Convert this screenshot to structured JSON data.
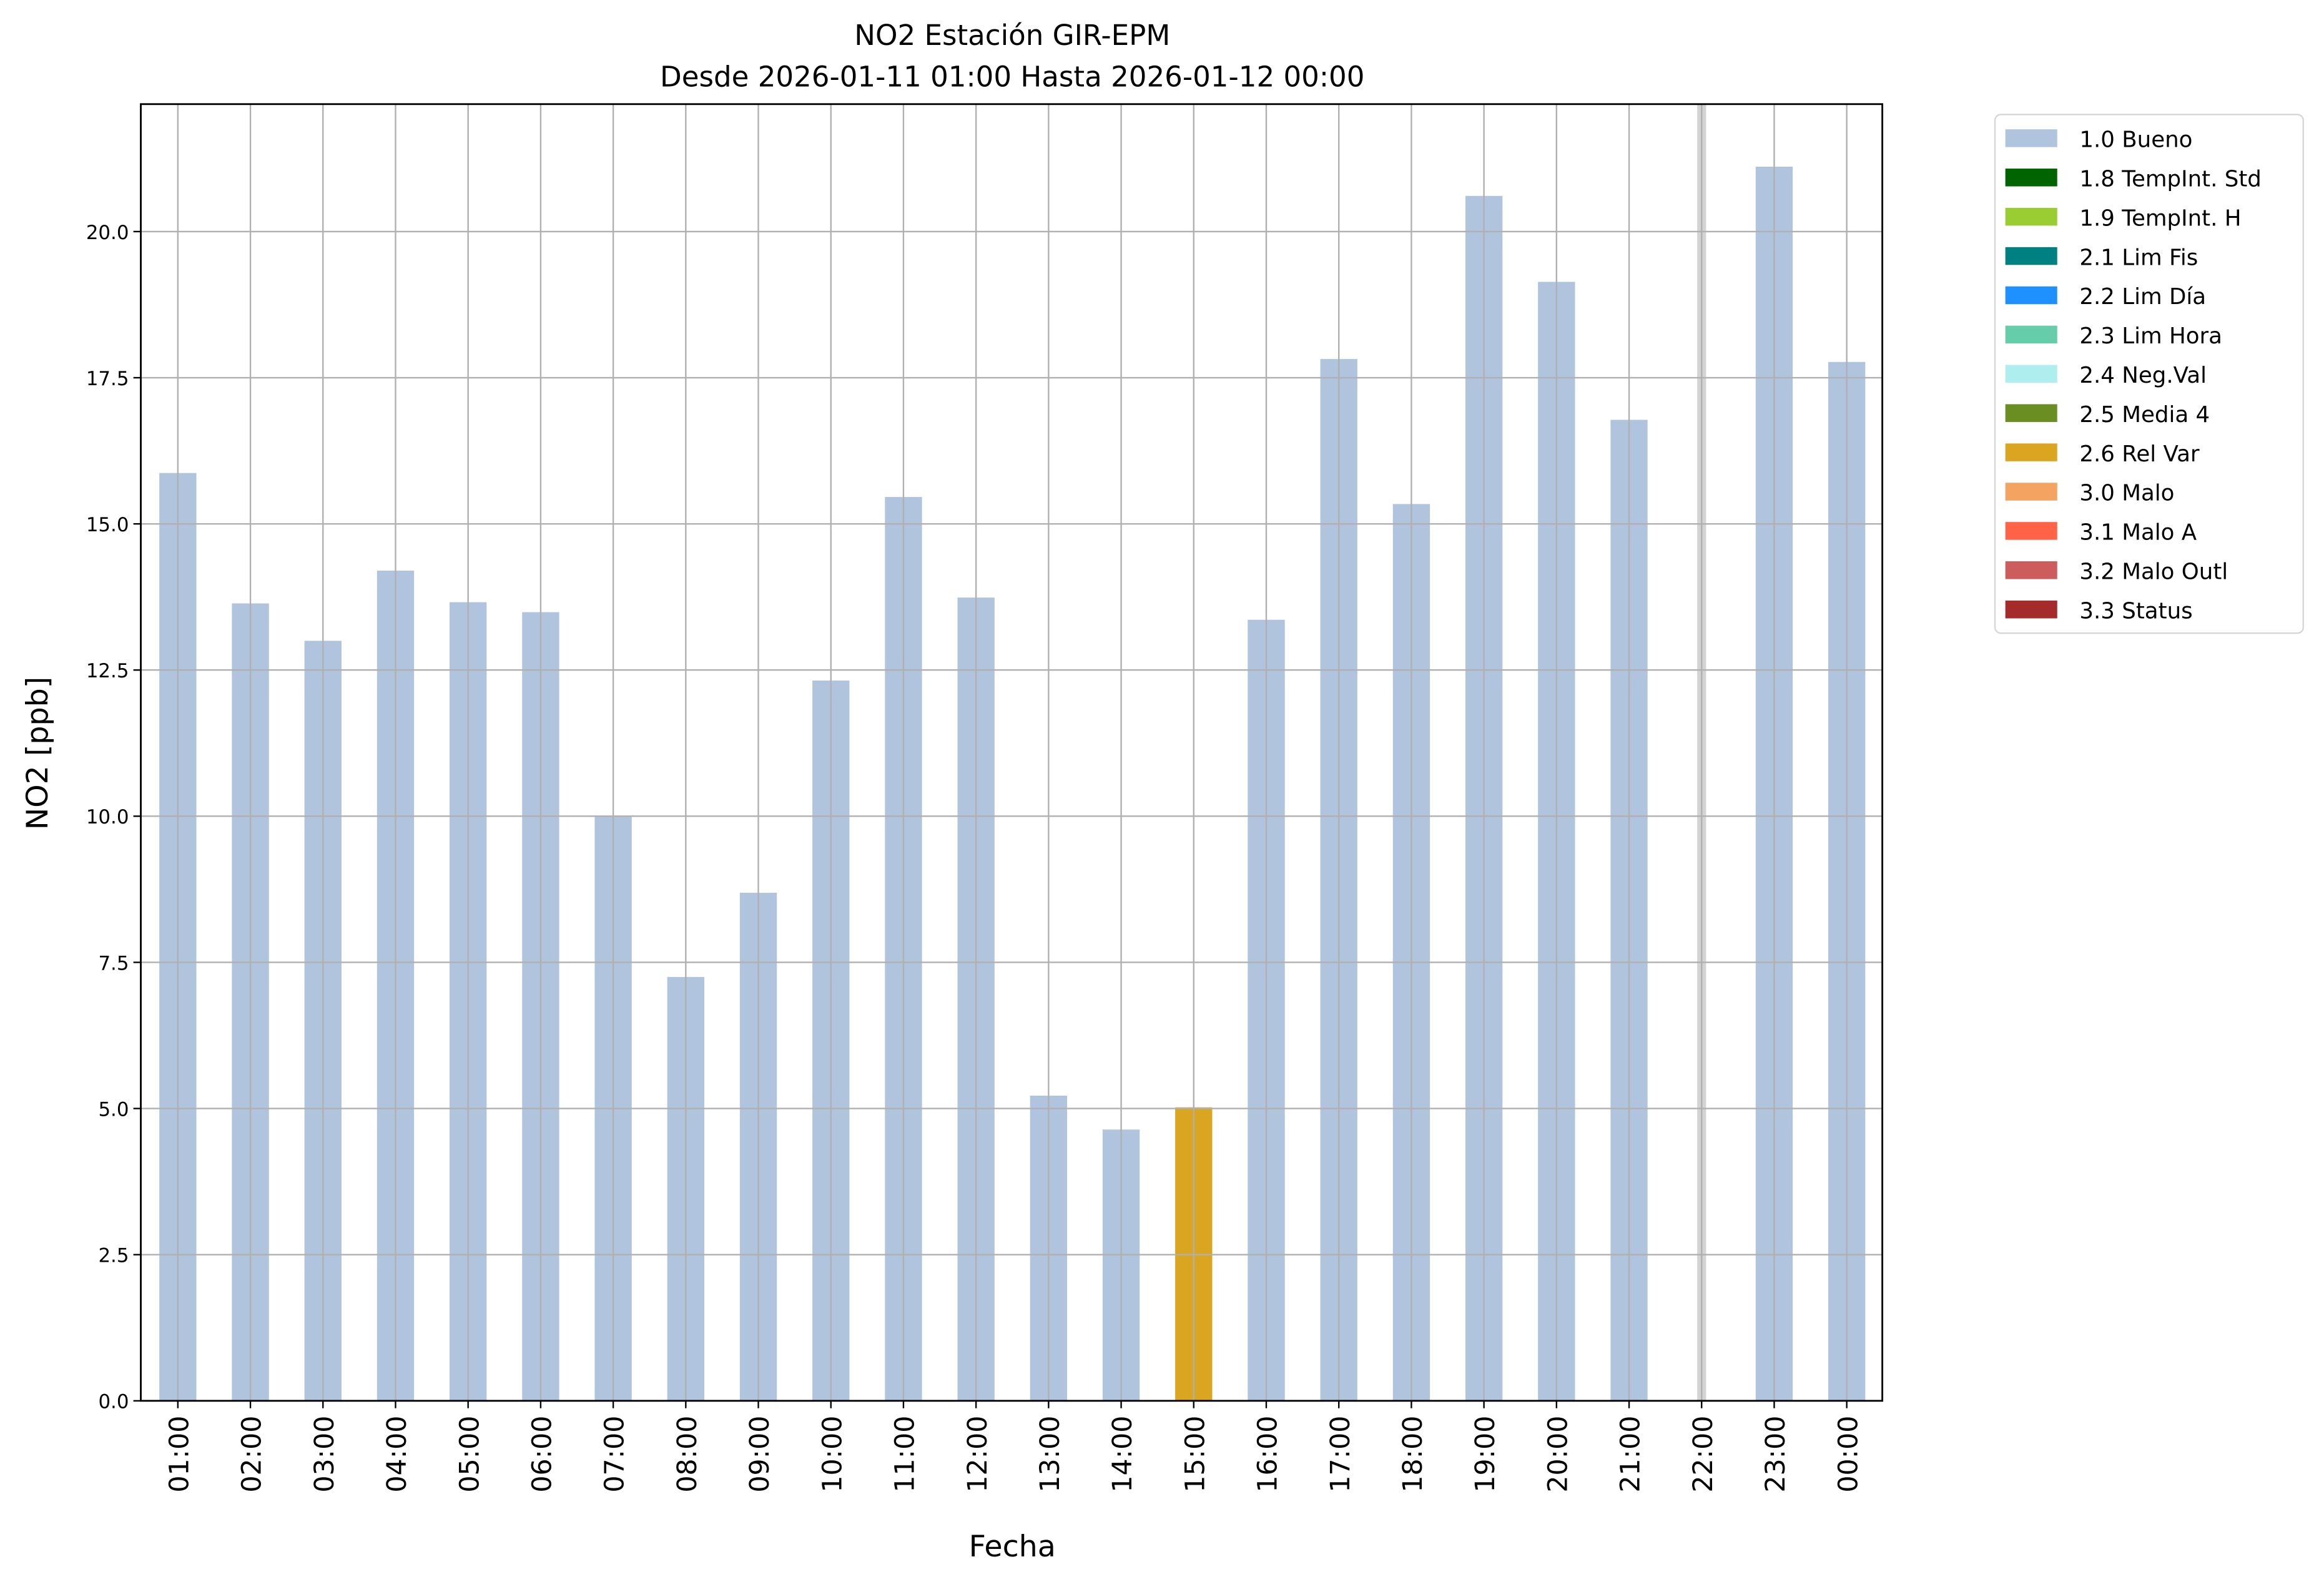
{
  "chart_data": {
    "type": "bar",
    "title": "NO2 Estación GIR-EPM",
    "subtitle": "Desde 2026-01-11 01:00 Hasta 2026-01-12 00:00",
    "xlabel": "Fecha",
    "ylabel": "NO2 [ppb]",
    "ylim": [
      0,
      22.18
    ],
    "yticks": [
      "0.0",
      "2.5",
      "5.0",
      "7.5",
      "10.0",
      "12.5",
      "15.0",
      "17.5",
      "20.0"
    ],
    "grid": true,
    "legend_position": "outside-top-right",
    "categories": [
      "01:00",
      "02:00",
      "03:00",
      "04:00",
      "05:00",
      "06:00",
      "07:00",
      "08:00",
      "09:00",
      "10:00",
      "11:00",
      "12:00",
      "13:00",
      "14:00",
      "15:00",
      "16:00",
      "17:00",
      "18:00",
      "19:00",
      "20:00",
      "21:00",
      "22:00",
      "23:00",
      "00:00"
    ],
    "values": [
      15.87,
      13.64,
      13.0,
      14.2,
      13.66,
      13.49,
      9.99,
      7.25,
      8.69,
      12.32,
      15.46,
      13.74,
      5.22,
      4.64,
      5.02,
      13.36,
      17.82,
      15.34,
      20.61,
      19.14,
      16.78,
      null,
      21.11,
      17.77
    ],
    "flags": [
      "1.0 Bueno",
      "1.0 Bueno",
      "1.0 Bueno",
      "1.0 Bueno",
      "1.0 Bueno",
      "1.0 Bueno",
      "1.0 Bueno",
      "1.0 Bueno",
      "1.0 Bueno",
      "1.0 Bueno",
      "1.0 Bueno",
      "1.0 Bueno",
      "1.0 Bueno",
      "1.0 Bueno",
      "2.6 Rel Var",
      "1.0 Bueno",
      "1.0 Bueno",
      "1.0 Bueno",
      "1.0 Bueno",
      "1.0 Bueno",
      "1.0 Bueno",
      null,
      "1.0 Bueno",
      "1.0 Bueno"
    ],
    "missing_marker_color": "#d3d3d3",
    "legend": [
      {
        "label": "1.0 Bueno",
        "color": "#b0c4de"
      },
      {
        "label": "1.8 TempInt. Std",
        "color": "#006400"
      },
      {
        "label": "1.9 TempInt. H",
        "color": "#9acd32"
      },
      {
        "label": "2.1 Lim Fis",
        "color": "#008080"
      },
      {
        "label": "2.2 Lim Día",
        "color": "#1e90ff"
      },
      {
        "label": "2.3 Lim Hora",
        "color": "#66cdaa"
      },
      {
        "label": "2.4 Neg.Val",
        "color": "#afeeee"
      },
      {
        "label": "2.5 Media 4",
        "color": "#6b8e23"
      },
      {
        "label": "2.6 Rel Var",
        "color": "#daa520"
      },
      {
        "label": "3.0 Malo",
        "color": "#f4a460"
      },
      {
        "label": "3.1 Malo A",
        "color": "#ff6347"
      },
      {
        "label": "3.2 Malo Outl",
        "color": "#cd5c5c"
      },
      {
        "label": "3.3 Status",
        "color": "#a52a2a"
      }
    ]
  }
}
